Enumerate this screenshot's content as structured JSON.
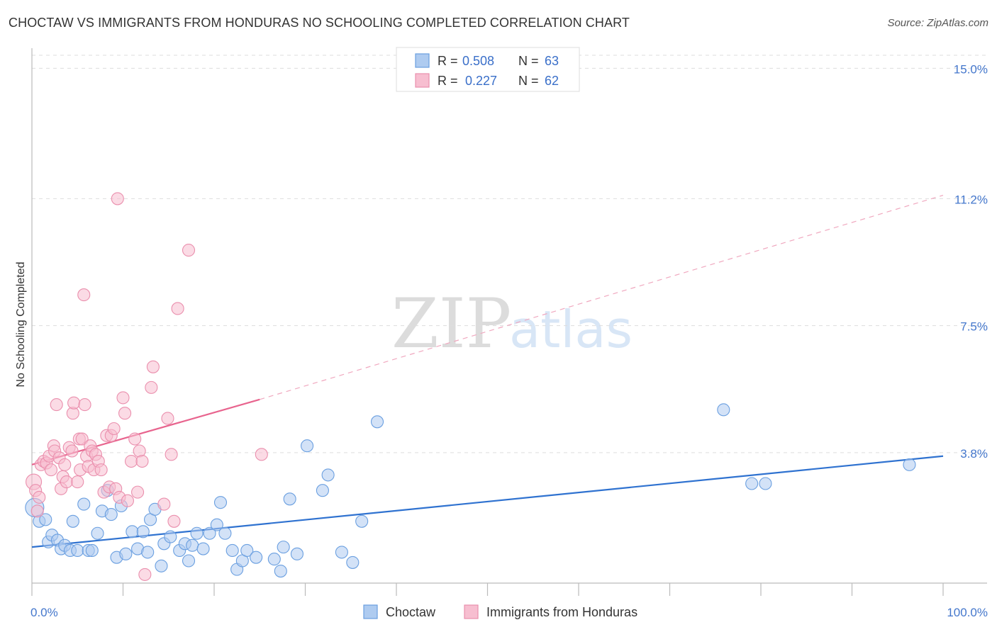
{
  "title": "CHOCTAW VS IMMIGRANTS FROM HONDURAS NO SCHOOLING COMPLETED CORRELATION CHART",
  "source": "Source: ZipAtlas.com",
  "watermark": {
    "zip": "ZIP",
    "atlas": "atlas"
  },
  "colors": {
    "blue_fill": "#aecbf0",
    "blue_stroke": "#6a9fe0",
    "blue_line": "#2f72d0",
    "pink_fill": "#f7bed0",
    "pink_stroke": "#ea8fad",
    "pink_line": "#e8648e",
    "tick_label": "#4477cc",
    "grid": "#dddddd",
    "axis": "#bbbbbb"
  },
  "legend_top": [
    {
      "r_label": "R =",
      "r_value": "0.508",
      "n_label": "N =",
      "n_value": "63",
      "series": "blue"
    },
    {
      "r_label": "R =",
      "r_value": "0.227",
      "n_label": "N =",
      "n_value": "62",
      "series": "pink"
    }
  ],
  "chart_data": {
    "type": "scatter",
    "title": "CHOCTAW VS IMMIGRANTS FROM HONDURAS NO SCHOOLING COMPLETED CORRELATION CHART",
    "xlabel": "",
    "ylabel": "No Schooling Completed",
    "xlim": [
      0,
      100
    ],
    "ylim": [
      0,
      15.75
    ],
    "x_tick_labels": [
      "0.0%",
      "100.0%"
    ],
    "y_ticks": [
      3.8,
      7.5,
      11.2,
      15.0
    ],
    "y_tick_labels": [
      "3.8%",
      "7.5%",
      "11.2%",
      "15.0%"
    ],
    "grid": true,
    "legend": [
      "Choctaw",
      "Immigrants from Honduras"
    ],
    "series": [
      {
        "name": "Choctaw",
        "color": "blue",
        "trend": {
          "x0": 0,
          "y0": 1.05,
          "x1": 100,
          "y1": 3.7
        },
        "points": [
          [
            0.3,
            2.2
          ],
          [
            0.8,
            1.8
          ],
          [
            1.5,
            1.85
          ],
          [
            1.8,
            1.2
          ],
          [
            2.2,
            1.4
          ],
          [
            2.8,
            1.25
          ],
          [
            3.2,
            1.0
          ],
          [
            3.6,
            1.1
          ],
          [
            4.2,
            0.95
          ],
          [
            4.5,
            1.8
          ],
          [
            5.0,
            0.95
          ],
          [
            5.7,
            2.3
          ],
          [
            6.2,
            0.95
          ],
          [
            6.6,
            0.95
          ],
          [
            7.2,
            1.45
          ],
          [
            7.7,
            2.1
          ],
          [
            8.3,
            2.7
          ],
          [
            8.7,
            2.0
          ],
          [
            9.3,
            0.75
          ],
          [
            9.8,
            2.25
          ],
          [
            10.3,
            0.85
          ],
          [
            11.0,
            1.5
          ],
          [
            11.6,
            1.0
          ],
          [
            12.2,
            1.5
          ],
          [
            12.7,
            0.9
          ],
          [
            13.0,
            1.85
          ],
          [
            13.5,
            2.15
          ],
          [
            14.2,
            0.5
          ],
          [
            14.5,
            1.15
          ],
          [
            15.2,
            1.35
          ],
          [
            16.2,
            0.95
          ],
          [
            16.8,
            1.15
          ],
          [
            17.2,
            0.65
          ],
          [
            17.6,
            1.1
          ],
          [
            18.1,
            1.45
          ],
          [
            18.8,
            1.0
          ],
          [
            19.5,
            1.45
          ],
          [
            20.3,
            1.7
          ],
          [
            20.7,
            2.35
          ],
          [
            21.2,
            1.45
          ],
          [
            22.0,
            0.95
          ],
          [
            22.5,
            0.4
          ],
          [
            23.1,
            0.65
          ],
          [
            23.6,
            0.95
          ],
          [
            24.6,
            0.75
          ],
          [
            26.6,
            0.7
          ],
          [
            27.3,
            0.35
          ],
          [
            27.6,
            1.05
          ],
          [
            28.3,
            2.45
          ],
          [
            29.1,
            0.85
          ],
          [
            30.2,
            4.0
          ],
          [
            31.9,
            2.7
          ],
          [
            32.5,
            3.15
          ],
          [
            34.0,
            0.9
          ],
          [
            35.2,
            0.6
          ],
          [
            36.2,
            1.8
          ],
          [
            37.9,
            4.7
          ],
          [
            75.9,
            5.05
          ],
          [
            79.0,
            2.9
          ],
          [
            80.5,
            2.9
          ],
          [
            96.3,
            3.45
          ]
        ]
      },
      {
        "name": "Immigrants from Honduras",
        "color": "pink",
        "trend": {
          "x0": 0,
          "y0": 3.45,
          "x1": 25,
          "y1": 5.35,
          "dash_to_x": 100,
          "dash_to_y": 11.3
        },
        "points": [
          [
            0.2,
            2.95
          ],
          [
            0.4,
            2.7
          ],
          [
            0.6,
            2.1
          ],
          [
            0.8,
            2.5
          ],
          [
            1.0,
            3.45
          ],
          [
            1.3,
            3.55
          ],
          [
            1.6,
            3.5
          ],
          [
            1.9,
            3.7
          ],
          [
            2.1,
            3.3
          ],
          [
            2.4,
            4.0
          ],
          [
            2.5,
            3.85
          ],
          [
            2.7,
            5.2
          ],
          [
            3.0,
            3.65
          ],
          [
            3.2,
            2.75
          ],
          [
            3.4,
            3.1
          ],
          [
            3.6,
            3.45
          ],
          [
            3.8,
            2.95
          ],
          [
            4.1,
            3.95
          ],
          [
            4.4,
            3.85
          ],
          [
            4.5,
            4.95
          ],
          [
            4.6,
            5.25
          ],
          [
            5.0,
            2.95
          ],
          [
            5.2,
            4.2
          ],
          [
            5.3,
            3.3
          ],
          [
            5.5,
            4.2
          ],
          [
            5.7,
            8.4
          ],
          [
            5.8,
            5.2
          ],
          [
            6.0,
            3.7
          ],
          [
            6.2,
            3.4
          ],
          [
            6.4,
            4.0
          ],
          [
            6.6,
            3.85
          ],
          [
            6.8,
            3.3
          ],
          [
            7.0,
            3.75
          ],
          [
            7.3,
            3.55
          ],
          [
            7.6,
            3.3
          ],
          [
            7.9,
            2.65
          ],
          [
            8.2,
            4.3
          ],
          [
            8.5,
            2.8
          ],
          [
            8.7,
            4.3
          ],
          [
            9.0,
            4.5
          ],
          [
            9.2,
            2.75
          ],
          [
            9.4,
            11.2
          ],
          [
            9.6,
            2.5
          ],
          [
            10.0,
            5.4
          ],
          [
            10.2,
            4.95
          ],
          [
            10.5,
            2.4
          ],
          [
            10.9,
            3.55
          ],
          [
            11.3,
            4.2
          ],
          [
            11.6,
            2.65
          ],
          [
            11.8,
            3.85
          ],
          [
            12.1,
            3.55
          ],
          [
            12.4,
            0.25
          ],
          [
            13.1,
            5.7
          ],
          [
            13.3,
            6.3
          ],
          [
            14.5,
            2.3
          ],
          [
            14.9,
            4.8
          ],
          [
            15.3,
            3.75
          ],
          [
            15.6,
            1.8
          ],
          [
            16.0,
            8.0
          ],
          [
            17.2,
            9.7
          ],
          [
            25.2,
            3.75
          ]
        ]
      }
    ]
  },
  "bottom_legend": [
    {
      "label": "Choctaw",
      "series": "blue"
    },
    {
      "label": "Immigrants from Honduras",
      "series": "pink"
    }
  ]
}
